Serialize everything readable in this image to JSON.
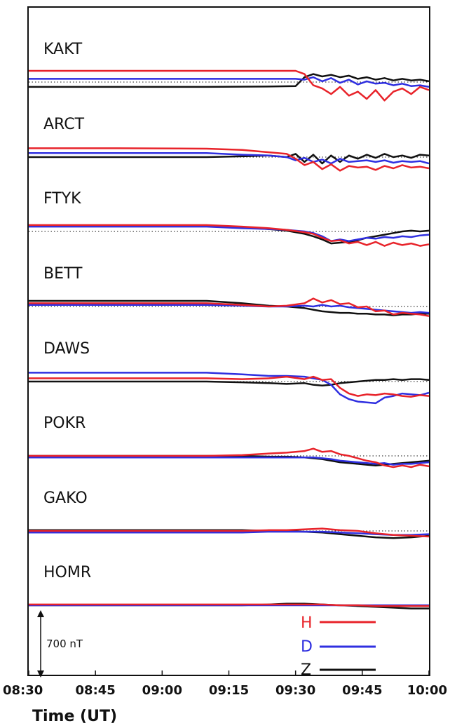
{
  "chart_data": {
    "type": "line",
    "xlabel": "Time (UT)",
    "x_ticks": [
      "08:30",
      "08:45",
      "09:00",
      "09:15",
      "09:30",
      "09:45",
      "10:00"
    ],
    "x_range_minutes": [
      0,
      90
    ],
    "scale_bar_label": "700 nT",
    "legend": [
      {
        "key": "H",
        "color": "#e8232a"
      },
      {
        "key": "D",
        "color": "#2f2fe0"
      },
      {
        "key": "Z",
        "color": "#111111"
      }
    ],
    "stations": [
      {
        "name": "KAKT",
        "x": [
          0,
          20,
          40,
          55,
          60,
          62,
          64,
          66,
          68,
          70,
          72,
          74,
          76,
          78,
          80,
          82,
          84,
          86,
          88,
          90
        ],
        "H": [
          140,
          140,
          140,
          140,
          140,
          100,
          -40,
          -80,
          -150,
          -60,
          -170,
          -120,
          -210,
          -100,
          -230,
          -120,
          -80,
          -150,
          -60,
          -100
        ],
        "D": [
          40,
          40,
          40,
          40,
          40,
          30,
          60,
          10,
          50,
          -10,
          30,
          -30,
          10,
          -20,
          -10,
          -40,
          -20,
          -50,
          -40,
          -60
        ],
        "Z": [
          -60,
          -60,
          -60,
          -55,
          -50,
          60,
          100,
          70,
          90,
          60,
          80,
          40,
          60,
          30,
          50,
          20,
          40,
          20,
          30,
          10
        ]
      },
      {
        "name": "ARCT",
        "x": [
          0,
          20,
          40,
          48,
          54,
          58,
          60,
          62,
          64,
          66,
          68,
          70,
          72,
          74,
          76,
          78,
          80,
          82,
          84,
          86,
          88,
          90
        ],
        "H": [
          110,
          110,
          105,
          90,
          60,
          40,
          -20,
          -100,
          -60,
          -150,
          -90,
          -170,
          -110,
          -130,
          -120,
          -160,
          -110,
          -140,
          -100,
          -130,
          -120,
          -140
        ],
        "D": [
          50,
          50,
          50,
          30,
          20,
          0,
          -40,
          -10,
          -60,
          -30,
          -80,
          -20,
          -60,
          -50,
          -40,
          -60,
          -40,
          -70,
          -50,
          -60,
          -50,
          -80
        ],
        "Z": [
          0,
          0,
          0,
          10,
          20,
          0,
          40,
          -60,
          30,
          -80,
          20,
          -60,
          20,
          -20,
          30,
          -10,
          40,
          0,
          20,
          -10,
          30,
          20
        ]
      },
      {
        "name": "FTYK",
        "x": [
          0,
          20,
          40,
          48,
          54,
          58,
          62,
          64,
          66,
          68,
          70,
          72,
          74,
          76,
          78,
          80,
          82,
          84,
          86,
          88,
          90
        ],
        "H": [
          80,
          80,
          80,
          60,
          40,
          20,
          -10,
          -30,
          -80,
          -120,
          -110,
          -150,
          -130,
          -170,
          -130,
          -180,
          -140,
          -170,
          -150,
          -180,
          -160
        ],
        "D": [
          60,
          60,
          60,
          40,
          30,
          20,
          0,
          -20,
          -60,
          -120,
          -100,
          -120,
          -100,
          -80,
          -90,
          -70,
          -80,
          -60,
          -70,
          -50,
          -40
        ],
        "Z": [
          70,
          70,
          70,
          50,
          30,
          10,
          -30,
          -60,
          -100,
          -150,
          -140,
          -130,
          -110,
          -80,
          -60,
          -40,
          -20,
          0,
          10,
          0,
          10
        ]
      },
      {
        "name": "BETT",
        "x": [
          0,
          20,
          40,
          48,
          54,
          58,
          62,
          64,
          66,
          68,
          70,
          72,
          74,
          76,
          78,
          80,
          82,
          84,
          86,
          88,
          90
        ],
        "H": [
          40,
          40,
          40,
          20,
          0,
          10,
          40,
          100,
          50,
          80,
          30,
          40,
          -10,
          0,
          -60,
          -50,
          -100,
          -80,
          -90,
          -100,
          -120
        ],
        "D": [
          20,
          20,
          20,
          10,
          0,
          0,
          10,
          0,
          20,
          0,
          10,
          -10,
          -20,
          -30,
          -40,
          -50,
          -60,
          -70,
          -80,
          -70,
          -80
        ],
        "Z": [
          70,
          70,
          70,
          40,
          10,
          0,
          -20,
          -40,
          -60,
          -70,
          -80,
          -80,
          -90,
          -90,
          -100,
          -100,
          -110,
          -100,
          -100,
          -90,
          -90
        ]
      },
      {
        "name": "DAWS",
        "x": [
          0,
          20,
          40,
          48,
          54,
          58,
          62,
          64,
          66,
          68,
          70,
          72,
          74,
          76,
          78,
          80,
          82,
          84,
          86,
          88,
          90
        ],
        "H": [
          40,
          40,
          40,
          30,
          40,
          60,
          30,
          60,
          20,
          30,
          -80,
          -150,
          -180,
          -160,
          -170,
          -150,
          -160,
          -180,
          -190,
          -170,
          -180
        ],
        "D": [
          110,
          110,
          110,
          90,
          70,
          70,
          60,
          40,
          20,
          -40,
          -160,
          -220,
          -250,
          -260,
          -270,
          -200,
          -180,
          -150,
          -160,
          -170,
          -140
        ],
        "Z": [
          0,
          0,
          0,
          -10,
          -20,
          -30,
          -20,
          -40,
          -50,
          -40,
          -20,
          -10,
          0,
          10,
          20,
          20,
          30,
          20,
          30,
          30,
          20
        ]
      },
      {
        "name": "POKR",
        "x": [
          0,
          20,
          40,
          48,
          54,
          58,
          62,
          64,
          66,
          68,
          70,
          72,
          74,
          76,
          78,
          80,
          82,
          84,
          86,
          88,
          90
        ],
        "H": [
          0,
          0,
          0,
          10,
          30,
          40,
          60,
          90,
          50,
          60,
          20,
          0,
          -30,
          -60,
          -80,
          -120,
          -140,
          -120,
          -140,
          -110,
          -130
        ],
        "D": [
          -20,
          -20,
          -20,
          -20,
          -20,
          -20,
          -20,
          -20,
          -30,
          -40,
          -60,
          -70,
          -80,
          -90,
          -100,
          -90,
          -110,
          -100,
          -100,
          -90,
          -80
        ],
        "Z": [
          0,
          0,
          0,
          0,
          -10,
          -10,
          -20,
          -30,
          -40,
          -60,
          -80,
          -90,
          -100,
          -110,
          -120,
          -110,
          -100,
          -90,
          -80,
          -70,
          -60
        ]
      },
      {
        "name": "GAKO",
        "x": [
          0,
          20,
          40,
          48,
          54,
          58,
          62,
          66,
          70,
          74,
          78,
          82,
          86,
          90
        ],
        "H": [
          0,
          0,
          0,
          0,
          10,
          10,
          20,
          30,
          10,
          0,
          -30,
          -50,
          -60,
          -70
        ],
        "D": [
          -20,
          -20,
          -20,
          -20,
          -10,
          -10,
          -10,
          -10,
          -20,
          -30,
          -40,
          -50,
          -50,
          -40
        ],
        "Z": [
          10,
          10,
          10,
          10,
          0,
          0,
          -10,
          -20,
          -40,
          -60,
          -80,
          -90,
          -80,
          -60
        ]
      },
      {
        "name": "HOMR",
        "x": [
          0,
          20,
          40,
          48,
          54,
          58,
          62,
          66,
          70,
          74,
          78,
          82,
          86,
          90
        ],
        "H": [
          10,
          10,
          10,
          10,
          10,
          10,
          10,
          10,
          0,
          0,
          -10,
          -10,
          -10,
          -10
        ],
        "D": [
          0,
          0,
          0,
          0,
          0,
          0,
          0,
          0,
          0,
          0,
          0,
          0,
          0,
          0
        ],
        "Z": [
          0,
          0,
          0,
          0,
          10,
          20,
          20,
          10,
          0,
          -10,
          -20,
          -30,
          -40,
          -40
        ]
      }
    ]
  }
}
